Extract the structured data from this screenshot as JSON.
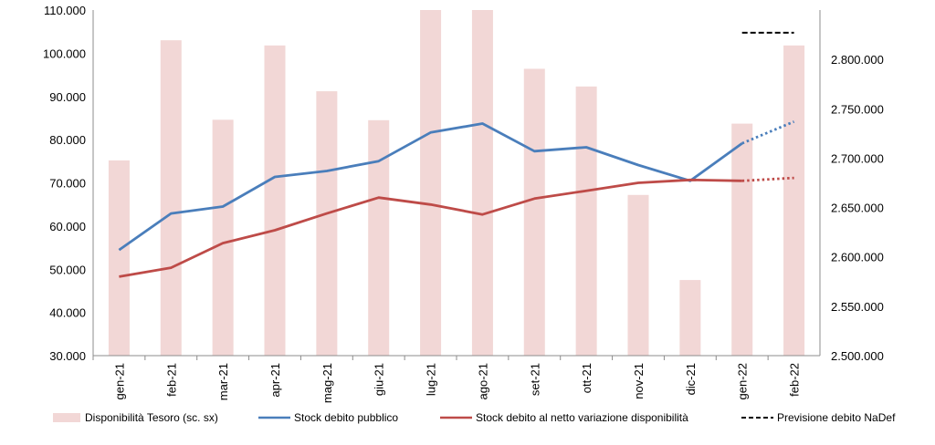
{
  "chart_data": {
    "type": "bar+line",
    "categories": [
      "gen-21",
      "feb-21",
      "mar-21",
      "apr-21",
      "mag-21",
      "giu-21",
      "lug-21",
      "ago-21",
      "set-21",
      "ott-21",
      "nov-21",
      "dic-21",
      "gen-22",
      "feb-22"
    ],
    "left_axis": {
      "min": 30000,
      "max": 110000,
      "step": 10000,
      "tick_labels": [
        "30.000",
        "40.000",
        "50.000",
        "60.000",
        "70.000",
        "80.000",
        "90.000",
        "100.000",
        "110.000"
      ]
    },
    "right_axis": {
      "min": 2500000,
      "max": 2850000,
      "step": 50000,
      "tick_labels": [
        "2.500.000",
        "2.550.000",
        "2.600.000",
        "2.650.000",
        "2.700.000",
        "2.750.000",
        "2.800.000"
      ]
    },
    "bars": {
      "name": "Disponibilità Tesoro (sc. sx)",
      "color": "#f2d7d6",
      "values": [
        75200,
        103000,
        84600,
        101800,
        91200,
        84500,
        110000,
        110000,
        96400,
        92300,
        67200,
        47500,
        83700,
        101800
      ]
    },
    "series": [
      {
        "name": "Stock debito pubblico",
        "color": "#4a7ebb",
        "values": [
          2607000,
          2644000,
          2651000,
          2681000,
          2687000,
          2697000,
          2726000,
          2735000,
          2707000,
          2711000,
          2693000,
          2677000,
          2715000,
          null
        ],
        "forecast": [
          null,
          null,
          null,
          null,
          null,
          null,
          null,
          null,
          null,
          null,
          null,
          null,
          2715000,
          2737000
        ]
      },
      {
        "name": "Stock debito al netto variazione disponibilità",
        "color": "#be4b48",
        "values": [
          2580000,
          2589000,
          2614000,
          2627000,
          2644000,
          2660000,
          2653000,
          2643000,
          2659000,
          2667000,
          2675000,
          2678000,
          2677000,
          null
        ],
        "forecast": [
          null,
          null,
          null,
          null,
          null,
          null,
          null,
          null,
          null,
          null,
          null,
          null,
          2677000,
          2680000
        ]
      },
      {
        "name": "Previsione debito NaDef",
        "color": "#000000",
        "dashed": true,
        "values": [
          null,
          null,
          null,
          null,
          null,
          null,
          null,
          null,
          null,
          null,
          null,
          null,
          2827000,
          2827000
        ]
      }
    ],
    "legend": "bottom",
    "grid": false
  }
}
